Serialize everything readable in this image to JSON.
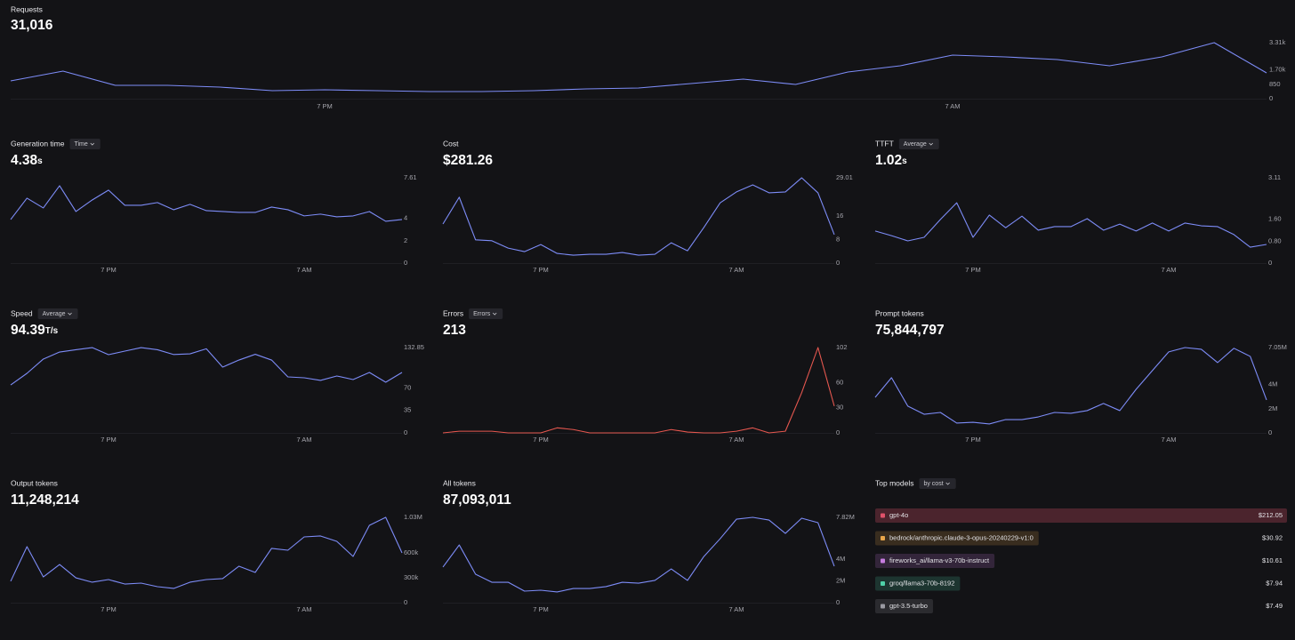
{
  "chart_data": [
    {
      "type": "line",
      "title": "Requests",
      "headline": "31,016",
      "color": "#7d8cf7",
      "categories": [
        null,
        null,
        null,
        null,
        null,
        null,
        "7 PM",
        null,
        null,
        null,
        null,
        null,
        null,
        null,
        null,
        null,
        null,
        null,
        "7 AM",
        null,
        null,
        null,
        null,
        null,
        null
      ],
      "values": [
        1051,
        1629,
        788,
        788,
        683,
        473,
        525,
        473,
        420,
        420,
        473,
        578,
        631,
        893,
        1156,
        841,
        1576,
        1944,
        2575,
        2470,
        2312,
        1944,
        2470,
        3310,
        1524
      ],
      "ylim": [
        0,
        3310
      ],
      "yticks": [
        0,
        850,
        {
          "value": 1700,
          "label": "1.70k"
        },
        {
          "value": 3310,
          "label": "3.31k"
        }
      ]
    },
    {
      "type": "line",
      "title": "Generation time",
      "dropdown": "Time",
      "headline": "4.38",
      "headline_unit": "s",
      "color": "#7d8cf7",
      "categories": [
        null,
        null,
        null,
        null,
        null,
        null,
        "7 PM",
        null,
        null,
        null,
        null,
        null,
        null,
        null,
        null,
        null,
        null,
        null,
        "7 AM",
        null,
        null,
        null,
        null,
        null,
        null
      ],
      "values": [
        3.89,
        5.79,
        4.92,
        6.9,
        4.6,
        5.63,
        6.51,
        5.16,
        5.16,
        5.4,
        4.76,
        5.24,
        4.68,
        4.6,
        4.52,
        4.52,
        5.0,
        4.76,
        4.21,
        4.37,
        4.13,
        4.21,
        4.6,
        3.73,
        3.89
      ],
      "ylim": [
        0,
        7.61
      ],
      "yticks": [
        0,
        2,
        4,
        7.61
      ]
    },
    {
      "type": "line",
      "title": "Cost",
      "headline": "$281.26",
      "color": "#7d8cf7",
      "categories": [
        null,
        null,
        null,
        null,
        null,
        null,
        "7 PM",
        null,
        null,
        null,
        null,
        null,
        null,
        null,
        null,
        null,
        null,
        null,
        "7 AM",
        null,
        null,
        null,
        null,
        null,
        null
      ],
      "values": [
        13.3,
        22.4,
        7.9,
        7.6,
        5.1,
        3.9,
        6.3,
        3.3,
        2.7,
        3.0,
        3.0,
        3.6,
        2.7,
        3.0,
        6.9,
        4.2,
        12.1,
        20.5,
        24.2,
        26.6,
        23.9,
        24.2,
        29.0,
        23.9,
        9.7
      ],
      "ylim": [
        0,
        29.01
      ],
      "yticks": [
        0,
        8,
        16,
        29.01
      ]
    },
    {
      "type": "line",
      "title": "TTFT",
      "dropdown": "Average",
      "headline": "1.02",
      "headline_unit": "s",
      "color": "#7d8cf7",
      "categories": [
        null,
        null,
        null,
        null,
        null,
        null,
        "7 PM",
        null,
        null,
        null,
        null,
        null,
        null,
        null,
        null,
        null,
        null,
        null,
        "7 AM",
        null,
        null,
        null,
        null,
        null,
        null
      ],
      "values": [
        1.17,
        1.0,
        0.81,
        0.94,
        1.59,
        2.2,
        0.94,
        1.75,
        1.29,
        1.71,
        1.2,
        1.33,
        1.33,
        1.62,
        1.2,
        1.42,
        1.17,
        1.46,
        1.17,
        1.46,
        1.36,
        1.33,
        1.04,
        0.58,
        0.68
      ],
      "ylim": [
        0,
        3.11
      ],
      "yticks": [
        0,
        {
          "value": 0.8,
          "label": "0.80"
        },
        {
          "value": 1.6,
          "label": "1.60"
        },
        3.11
      ]
    },
    {
      "type": "line",
      "title": "Speed",
      "dropdown": "Average",
      "headline": "94.39",
      "headline_unit": "T/s",
      "color": "#7d8cf7",
      "categories": [
        null,
        null,
        null,
        null,
        null,
        null,
        "7 PM",
        null,
        null,
        null,
        null,
        null,
        null,
        null,
        null,
        null,
        null,
        null,
        "7 AM",
        null,
        null,
        null,
        null,
        null,
        null
      ],
      "values": [
        74.7,
        92.7,
        114.9,
        125.9,
        129.5,
        132.8,
        121.8,
        127.3,
        132.8,
        129.5,
        122.0,
        123.1,
        131.0,
        102.4,
        113.4,
        122.4,
        113.4,
        87.2,
        85.8,
        81.7,
        88.6,
        83.0,
        94.1,
        78.9,
        94.1
      ],
      "ylim": [
        0,
        132.85
      ],
      "yticks": [
        0,
        35,
        70,
        132.85
      ]
    },
    {
      "type": "line",
      "title": "Errors",
      "dropdown": "Errors",
      "headline": "213",
      "color": "#e5574f",
      "categories": [
        null,
        null,
        null,
        null,
        null,
        null,
        "7 PM",
        null,
        null,
        null,
        null,
        null,
        null,
        null,
        null,
        null,
        null,
        null,
        "7 AM",
        null,
        null,
        null,
        null,
        null,
        null
      ],
      "values": [
        0,
        2,
        2,
        2,
        0,
        0,
        0,
        6,
        4,
        0,
        0,
        0,
        0,
        0,
        4,
        1,
        0,
        0,
        2,
        6,
        0,
        2,
        48,
        102,
        32
      ],
      "ylim": [
        0,
        102
      ],
      "yticks": [
        0,
        30,
        60,
        102
      ]
    },
    {
      "type": "line",
      "title": "Prompt tokens",
      "headline": "75,844,797",
      "color": "#7d8cf7",
      "categories": [
        null,
        null,
        null,
        null,
        null,
        null,
        "7 PM",
        null,
        null,
        null,
        null,
        null,
        null,
        null,
        null,
        null,
        null,
        null,
        "7 AM",
        null,
        null,
        null,
        null,
        null,
        null
      ],
      "values": [
        2940000,
        4560000,
        2210000,
        1540000,
        1690000,
        810000,
        880000,
        740000,
        1100000,
        1100000,
        1320000,
        1690000,
        1620000,
        1840000,
        2430000,
        1840000,
        3600000,
        5150000,
        6690000,
        7050000,
        6910000,
        5810000,
        6990000,
        6320000,
        2720000
      ],
      "ylim": [
        0,
        7050000
      ],
      "yticks": [
        0,
        {
          "value": 2000000,
          "label": "2M"
        },
        {
          "value": 4000000,
          "label": "4M"
        },
        {
          "value": 7050000,
          "label": "7.05M"
        }
      ]
    },
    {
      "type": "line",
      "title": "Output tokens",
      "headline": "11,248,214",
      "color": "#7d8cf7",
      "categories": [
        null,
        null,
        null,
        null,
        null,
        null,
        "7 PM",
        null,
        null,
        null,
        null,
        null,
        null,
        null,
        null,
        null,
        null,
        null,
        "7 AM",
        null,
        null,
        null,
        null,
        null,
        null
      ],
      "values": [
        258000,
        676000,
        311000,
        461000,
        300000,
        247000,
        279000,
        225000,
        236000,
        193000,
        172000,
        247000,
        279000,
        290000,
        440000,
        365000,
        655000,
        633000,
        794000,
        805000,
        740000,
        558000,
        934000,
        1030000,
        601000
      ],
      "ylim": [
        0,
        1030000
      ],
      "yticks": [
        0,
        {
          "value": 300000,
          "label": "300k"
        },
        {
          "value": 600000,
          "label": "600k"
        },
        {
          "value": 1030000,
          "label": "1.03M"
        }
      ]
    },
    {
      "type": "line",
      "title": "All tokens",
      "headline": "87,093,011",
      "color": "#7d8cf7",
      "categories": [
        null,
        null,
        null,
        null,
        null,
        null,
        "7 PM",
        null,
        null,
        null,
        null,
        null,
        null,
        null,
        null,
        null,
        null,
        null,
        "7 AM",
        null,
        null,
        null,
        null,
        null,
        null
      ],
      "values": [
        3260000,
        5290000,
        2610000,
        1870000,
        1870000,
        1060000,
        1140000,
        980000,
        1300000,
        1300000,
        1470000,
        1870000,
        1790000,
        2040000,
        3090000,
        2040000,
        4230000,
        5860000,
        7650000,
        7820000,
        7570000,
        6350000,
        7740000,
        7330000,
        3340000
      ],
      "ylim": [
        0,
        7820000
      ],
      "yticks": [
        0,
        {
          "value": 2000000,
          "label": "2M"
        },
        {
          "value": 4000000,
          "label": "4M"
        },
        {
          "value": 7820000,
          "label": "7.82M"
        }
      ]
    },
    {
      "type": "ranked-bars",
      "title": "Top models",
      "dropdown": "by cost",
      "categories": [
        "gpt-4o",
        "bedrock/anthropic.claude-3-opus-20240229-v1:0",
        "fireworks_ai/llama-v3-70b-instruct",
        "groq/llama3-70b-8192",
        "gpt-3.5-turbo"
      ],
      "values": [
        212.05,
        30.92,
        10.61,
        7.94,
        7.49
      ],
      "value_labels": [
        "$212.05",
        "$30.92",
        "$10.61",
        "$7.94",
        "$7.49"
      ],
      "colors": [
        "#e0526a",
        "#e8a54a",
        "#c77ce0",
        "#4fd1a8",
        "#9b9ba3"
      ]
    }
  ]
}
